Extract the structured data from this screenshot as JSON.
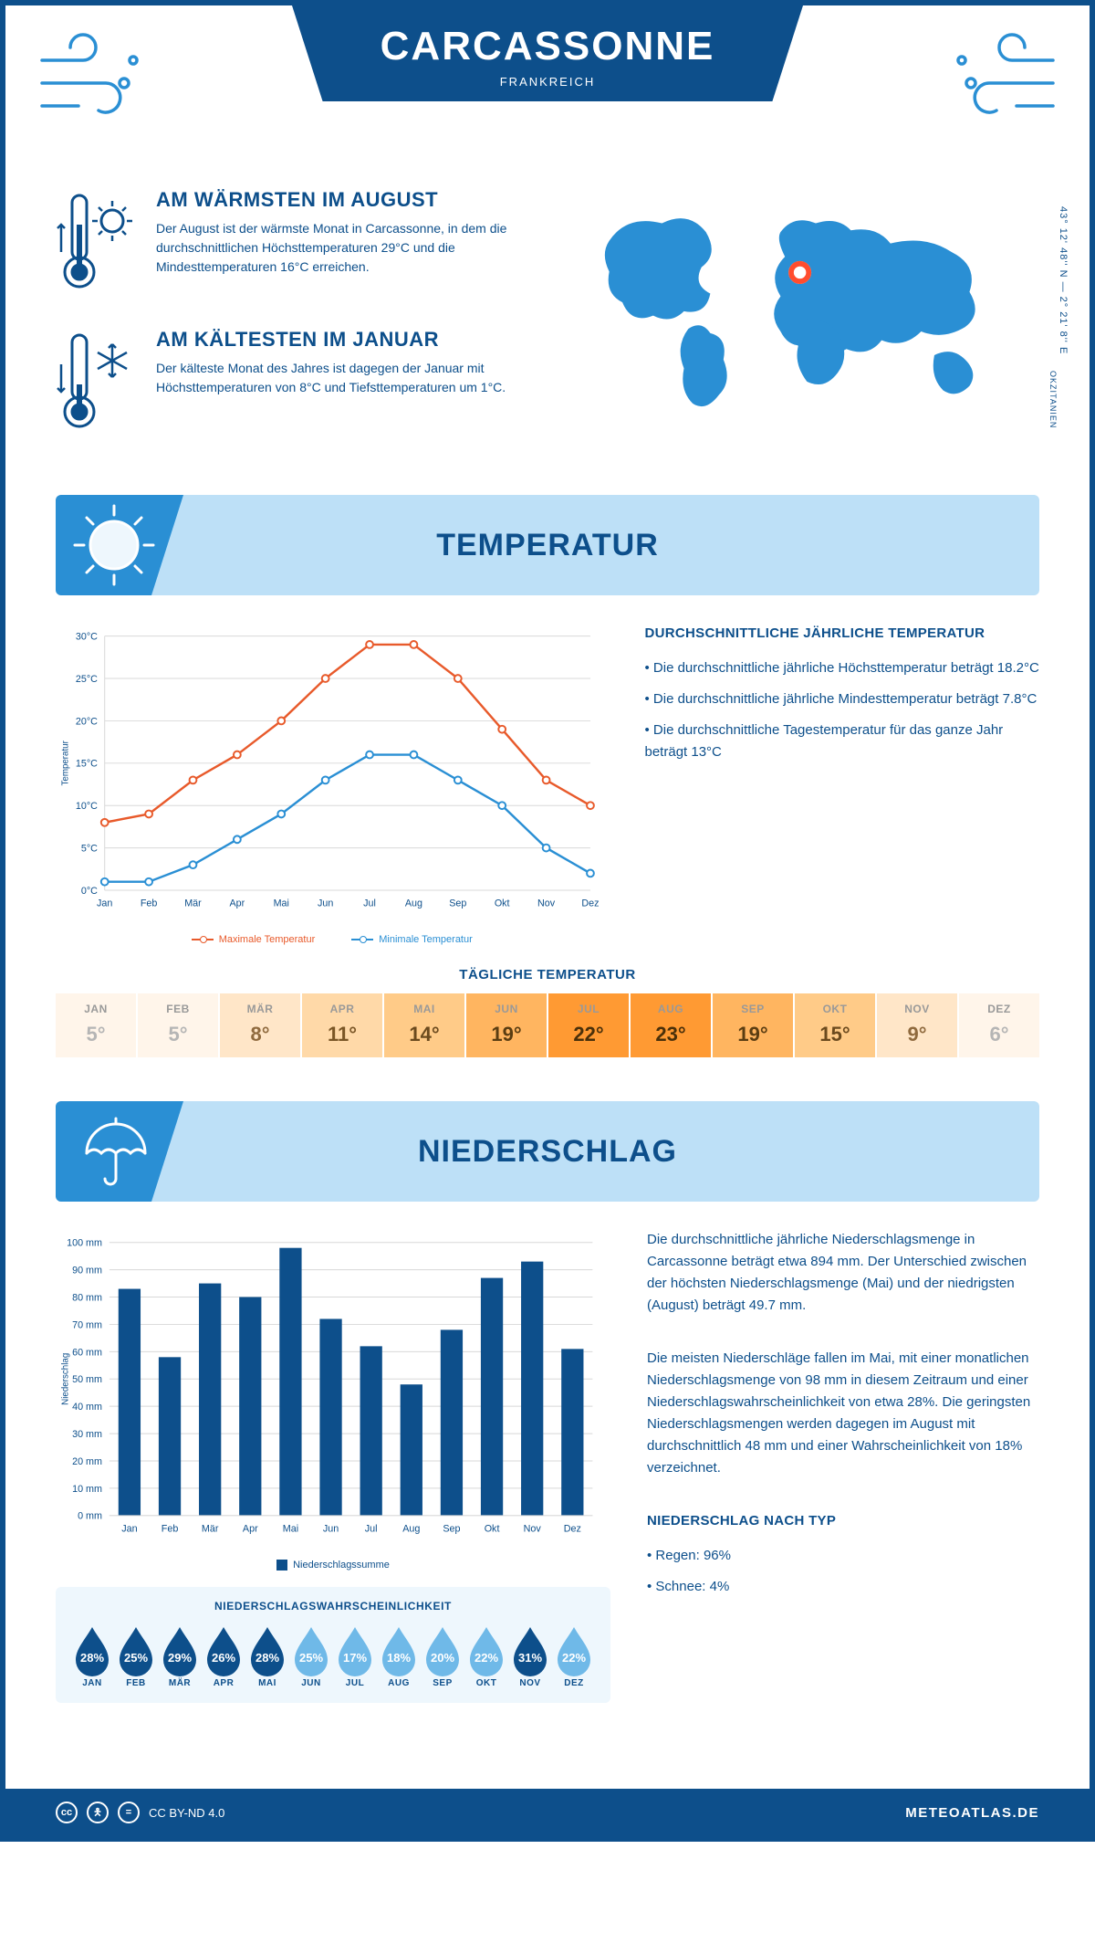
{
  "header": {
    "city": "CARCASSONNE",
    "country": "FRANKREICH"
  },
  "coords": "43° 12' 48'' N — 2° 21' 8'' E",
  "region": "OKZITANIEN",
  "colors": {
    "primary": "#0d4f8b",
    "light_blue": "#2a8fd4",
    "banner_bg": "#bde0f7",
    "max_line": "#e85a2b",
    "min_line": "#2a8fd4",
    "grid": "#d8d8d8",
    "drop_dark": "#0d4f8b",
    "drop_light": "#6fb9e8"
  },
  "warmest": {
    "title": "AM WÄRMSTEN IM AUGUST",
    "text": "Der August ist der wärmste Monat in Carcassonne, in dem die durchschnittlichen Höchsttemperaturen 29°C und die Mindesttemperaturen 16°C erreichen."
  },
  "coldest": {
    "title": "AM KÄLTESTEN IM JANUAR",
    "text": "Der kälteste Monat des Jahres ist dagegen der Januar mit Höchsttemperaturen von 8°C und Tiefsttemperaturen um 1°C."
  },
  "temp_section": {
    "title": "TEMPERATUR"
  },
  "temp_chart": {
    "months": [
      "Jan",
      "Feb",
      "Mär",
      "Apr",
      "Mai",
      "Jun",
      "Jul",
      "Aug",
      "Sep",
      "Okt",
      "Nov",
      "Dez"
    ],
    "max": [
      8,
      9,
      13,
      16,
      20,
      25,
      29,
      29,
      25,
      19,
      13,
      10
    ],
    "min": [
      1,
      1,
      3,
      6,
      9,
      13,
      16,
      16,
      13,
      10,
      5,
      2
    ],
    "ylim": [
      0,
      30
    ],
    "ytick_step": 5,
    "ytick_suffix": "°C",
    "ylabel": "Temperatur",
    "legend_max": "Maximale Temperatur",
    "legend_min": "Minimale Temperatur"
  },
  "temp_info": {
    "title": "DURCHSCHNITTLICHE JÄHRLICHE TEMPERATUR",
    "b1": "• Die durchschnittliche jährliche Höchsttemperatur beträgt 18.2°C",
    "b2": "• Die durchschnittliche jährliche Mindesttemperatur beträgt 7.8°C",
    "b3": "• Die durchschnittliche Tagestemperatur für das ganze Jahr beträgt 13°C"
  },
  "daily_temp": {
    "title": "TÄGLICHE TEMPERATUR",
    "months": [
      "JAN",
      "FEB",
      "MÄR",
      "APR",
      "MAI",
      "JUN",
      "JUL",
      "AUG",
      "SEP",
      "OKT",
      "NOV",
      "DEZ"
    ],
    "values": [
      "5°",
      "5°",
      "8°",
      "11°",
      "14°",
      "19°",
      "22°",
      "23°",
      "19°",
      "15°",
      "9°",
      "6°"
    ],
    "bg_colors": [
      "#fff5ea",
      "#fff5ea",
      "#ffe6c8",
      "#ffd9a8",
      "#ffcb88",
      "#ffb560",
      "#ff9a33",
      "#ff9a33",
      "#ffb560",
      "#ffcb88",
      "#ffe6c8",
      "#fff5ea"
    ],
    "text_colors": [
      "#b5b5b5",
      "#b5b5b5",
      "#8f6a3e",
      "#7a5626",
      "#6b4a1e",
      "#5a3d12",
      "#4a300a",
      "#4a300a",
      "#5a3d12",
      "#6b4a1e",
      "#8f6a3e",
      "#b5b5b5"
    ]
  },
  "precip_section": {
    "title": "NIEDERSCHLAG"
  },
  "precip_chart": {
    "months": [
      "Jan",
      "Feb",
      "Mär",
      "Apr",
      "Mai",
      "Jun",
      "Jul",
      "Aug",
      "Sep",
      "Okt",
      "Nov",
      "Dez"
    ],
    "values": [
      83,
      58,
      85,
      80,
      98,
      72,
      62,
      48,
      68,
      87,
      93,
      61
    ],
    "ylim": [
      0,
      100
    ],
    "ytick_step": 10,
    "ytick_suffix": " mm",
    "ylabel": "Niederschlag",
    "legend": "Niederschlagssumme"
  },
  "precip_text": {
    "p1": "Die durchschnittliche jährliche Niederschlagsmenge in Carcassonne beträgt etwa 894 mm. Der Unterschied zwischen der höchsten Niederschlagsmenge (Mai) und der niedrigsten (August) beträgt 49.7 mm.",
    "p2": "Die meisten Niederschläge fallen im Mai, mit einer monatlichen Niederschlagsmenge von 98 mm in diesem Zeitraum und einer Niederschlagswahrscheinlichkeit von etwa 28%. Die geringsten Niederschlagsmengen werden dagegen im August mit durchschnittlich 48 mm und einer Wahrscheinlichkeit von 18% verzeichnet.",
    "type_title": "NIEDERSCHLAG NACH TYP",
    "type_rain": "• Regen: 96%",
    "type_snow": "• Schnee: 4%"
  },
  "precip_prob": {
    "title": "NIEDERSCHLAGSWAHRSCHEINLICHKEIT",
    "months": [
      "JAN",
      "FEB",
      "MÄR",
      "APR",
      "MAI",
      "JUN",
      "JUL",
      "AUG",
      "SEP",
      "OKT",
      "NOV",
      "DEZ"
    ],
    "pct": [
      "28%",
      "25%",
      "29%",
      "26%",
      "28%",
      "25%",
      "17%",
      "18%",
      "20%",
      "22%",
      "31%",
      "22%"
    ],
    "dark": [
      true,
      true,
      true,
      true,
      true,
      false,
      false,
      false,
      false,
      false,
      true,
      false
    ]
  },
  "footer": {
    "license": "CC BY-ND 4.0",
    "site": "METEOATLAS.DE"
  }
}
